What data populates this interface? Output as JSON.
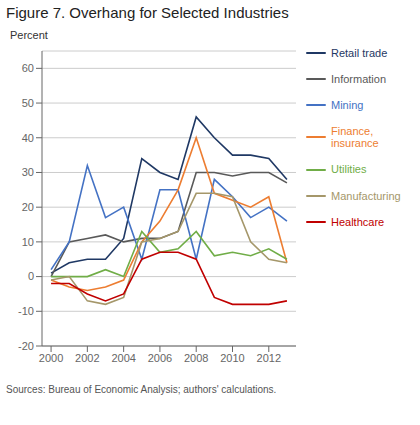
{
  "chart_data": {
    "type": "line",
    "title": "Figure 7. Overhang for Selected Industries",
    "ylabel": "Percent",
    "source": "Sources: Bureau of Economic Analysis; authors' calculations.",
    "x": [
      2000,
      2001,
      2002,
      2003,
      2004,
      2005,
      2006,
      2007,
      2008,
      2009,
      2010,
      2011,
      2012,
      2013
    ],
    "series": [
      {
        "name": "Retail trade",
        "color": "#1f3864",
        "values": [
          1,
          4,
          5,
          5,
          11,
          34,
          30,
          28,
          46,
          40,
          35,
          35,
          34,
          28
        ]
      },
      {
        "name": "Information",
        "color": "#595959",
        "values": [
          0,
          10,
          11,
          12,
          10,
          11,
          11,
          13,
          30,
          30,
          29,
          30,
          30,
          27
        ]
      },
      {
        "name": "Mining",
        "color": "#4472c4",
        "values": [
          2,
          10,
          32,
          17,
          20,
          5,
          25,
          25,
          5,
          28,
          23,
          17,
          20,
          16
        ]
      },
      {
        "name": "Finance,\ninsurance",
        "color": "#ed7d31",
        "values": [
          -1,
          -3,
          -4,
          -3,
          -1,
          10,
          16,
          25,
          40,
          24,
          22,
          20,
          23,
          4
        ]
      },
      {
        "name": "Utilities",
        "color": "#70ad47",
        "values": [
          0,
          0,
          0,
          2,
          0,
          13,
          7,
          8,
          13,
          6,
          7,
          6,
          8,
          5
        ]
      },
      {
        "name": "Manufacturing",
        "color": "#a5976a",
        "values": [
          -1,
          0,
          -7,
          -8,
          -6,
          10,
          11,
          13,
          24,
          24,
          23,
          10,
          5,
          4
        ]
      },
      {
        "name": "Healthcare",
        "color": "#c00000",
        "values": [
          -2,
          -2,
          -5,
          -7,
          -5,
          5,
          7,
          7,
          5,
          -6,
          -8,
          -8,
          -8,
          -7
        ]
      }
    ],
    "xlim": [
      1999.5,
      2013.5
    ],
    "xticks": [
      2000,
      2002,
      2004,
      2006,
      2008,
      2010,
      2012
    ],
    "ylim": [
      -20,
      65
    ],
    "yticks": [
      -20,
      -10,
      0,
      10,
      20,
      30,
      40,
      50,
      60
    ],
    "grid": true,
    "legend": "right"
  }
}
